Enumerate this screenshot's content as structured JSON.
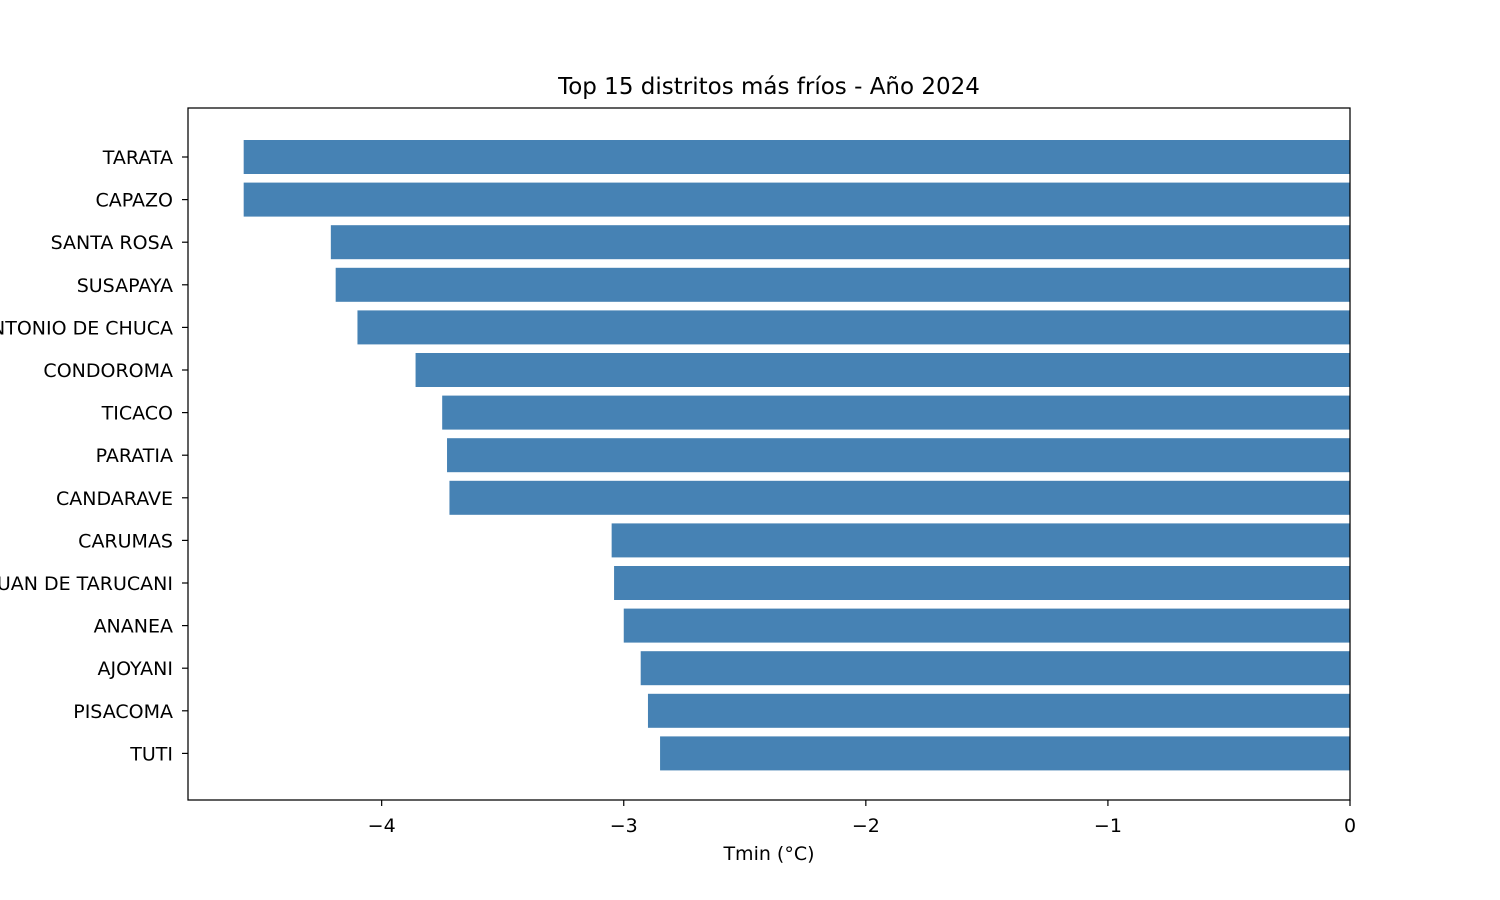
{
  "chart_data": {
    "type": "bar",
    "orientation": "horizontal",
    "title": "Top 15 distritos más fríos - Año 2024",
    "xlabel": "Tmin (°C)",
    "ylabel": "",
    "categories": [
      "TARATA",
      "CAPAZO",
      "SANTA ROSA",
      "SUSAPAYA",
      "SAN ANTONIO DE CHUCA",
      "CONDOROMA",
      "TICACO",
      "PARATIA",
      "CANDARAVE",
      "CARUMAS",
      "SAN JUAN DE TARUCANI",
      "ANANEA",
      "AJOYANI",
      "PISACOMA",
      "TUTI"
    ],
    "values": [
      -4.57,
      -4.57,
      -4.21,
      -4.19,
      -4.1,
      -3.86,
      -3.75,
      -3.73,
      -3.72,
      -3.05,
      -3.04,
      -3.0,
      -2.93,
      -2.9,
      -2.85
    ],
    "xlim": [
      -4.8,
      0
    ],
    "xticks": [
      -4,
      -3,
      -2,
      -1,
      0
    ],
    "xtick_labels": [
      "−4",
      "−3",
      "−2",
      "−1",
      "0"
    ],
    "bar_color": "#4682b4",
    "grid": false,
    "legend": "none"
  }
}
